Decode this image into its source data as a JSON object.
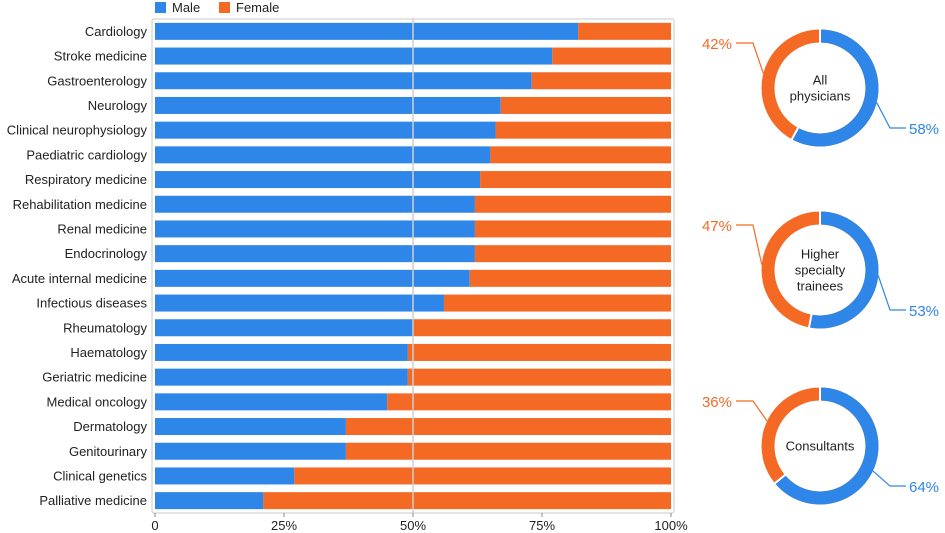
{
  "colors": {
    "male": "#2e86e8",
    "female": "#f46a25",
    "grid": "#cfcfcf",
    "frame": "#c8c8c8"
  },
  "legend": {
    "male": "Male",
    "female": "Female"
  },
  "chart_data": [
    {
      "type": "bar",
      "orientation": "horizontal",
      "stacked": true,
      "title": "",
      "xlabel": "",
      "ylabel": "",
      "xlim": [
        0,
        100
      ],
      "ticks": [
        "0",
        "25%",
        "50%",
        "75%",
        "100%"
      ],
      "categories": [
        "Cardiology",
        "Stroke medicine",
        "Gastroenterology",
        "Neurology",
        "Clinical neurophysiology",
        "Paediatric cardiology",
        "Respiratory medicine",
        "Rehabilitation medicine",
        "Renal medicine",
        "Endocrinology",
        "Acute internal medicine",
        "Infectious diseases",
        "Rheumatology",
        "Haematology",
        "Geriatric medicine",
        "Medical oncology",
        "Dermatology",
        "Genitourinary",
        "Clinical genetics",
        "Palliative medicine"
      ],
      "series": [
        {
          "name": "Male",
          "values": [
            82,
            77,
            73,
            67,
            66,
            65,
            63,
            62,
            62,
            62,
            61,
            56,
            50,
            49,
            49,
            45,
            37,
            37,
            27,
            21
          ]
        },
        {
          "name": "Female",
          "values": [
            18,
            23,
            27,
            33,
            34,
            35,
            37,
            38,
            38,
            38,
            39,
            44,
            50,
            51,
            51,
            55,
            63,
            63,
            73,
            79
          ]
        }
      ],
      "reference_line": 50,
      "legend_position": "top-left"
    },
    {
      "type": "pie",
      "donut": true,
      "label": "All physicians",
      "values": [
        58,
        42
      ],
      "value_labels": [
        "58%",
        "42%"
      ],
      "categories": [
        "Male",
        "Female"
      ]
    },
    {
      "type": "pie",
      "donut": true,
      "label": "Higher specialty trainees",
      "values": [
        53,
        47
      ],
      "value_labels": [
        "53%",
        "47%"
      ],
      "categories": [
        "Male",
        "Female"
      ]
    },
    {
      "type": "pie",
      "donut": true,
      "label": "Consultants",
      "values": [
        64,
        36
      ],
      "value_labels": [
        "64%",
        "36%"
      ],
      "categories": [
        "Male",
        "Female"
      ]
    }
  ],
  "donut_label_lines": [
    [
      "All",
      "physicians"
    ],
    [
      "Higher",
      "specialty",
      "trainees"
    ],
    [
      "Consultants"
    ]
  ]
}
